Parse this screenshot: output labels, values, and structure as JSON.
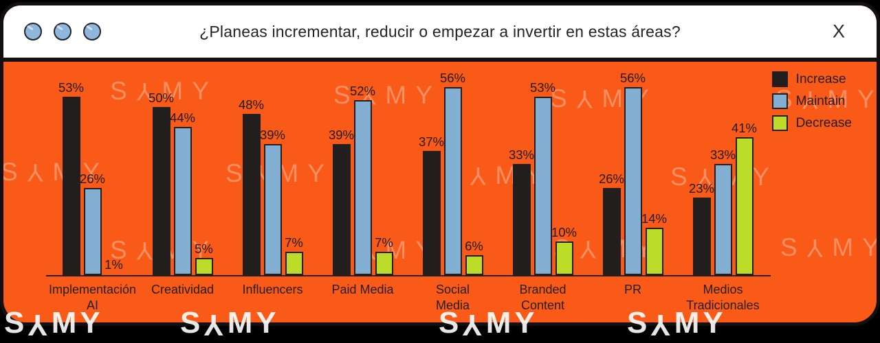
{
  "window": {
    "title": "¿Planeas incrementar, reducir o empezar a invertir en estas áreas?",
    "close_label": "X"
  },
  "colors": {
    "backdrop": "#000000",
    "window_frame": "#14100f",
    "titlebar_bg": "#ffffff",
    "chart_bg": "#F95A17",
    "traffic_light_blue": "#8FB7DC",
    "increase": "#221E1D",
    "maintain": "#82AFD2",
    "decrease": "#BDDC2A",
    "axis": "#241F1E",
    "text": "#241F1E"
  },
  "watermark": {
    "brand": "SAMY",
    "letters": [
      {
        "char": "S",
        "rotated": false
      },
      {
        "char": "Y",
        "rotated": true
      },
      {
        "char": "M",
        "rotated": false
      },
      {
        "char": "Y",
        "rotated": false
      }
    ]
  },
  "legend": {
    "items": [
      {
        "label": "Increase",
        "color": "#221E1D"
      },
      {
        "label": "Maintain",
        "color": "#82AFD2"
      },
      {
        "label": "Decrease",
        "color": "#BDDC2A"
      }
    ]
  },
  "chart_data": {
    "type": "bar",
    "title": "¿Planeas incrementar, reducir o empezar a invertir en estas áreas?",
    "categories": [
      "Implementación AI",
      "Creatividad",
      "Influencers",
      "Paid Media",
      "Social Media",
      "Branded Content",
      "PR",
      "Medios Tradicionales"
    ],
    "category_lines": [
      [
        "Implementación",
        "AI"
      ],
      [
        "Creatividad"
      ],
      [
        "Influencers"
      ],
      [
        "Paid Media"
      ],
      [
        "Social",
        "Media"
      ],
      [
        "Branded",
        "Content"
      ],
      [
        "PR"
      ],
      [
        "Medios",
        "Tradicionales"
      ]
    ],
    "series": [
      {
        "name": "Increase",
        "color": "#221E1D",
        "values": [
          53,
          50,
          48,
          39,
          37,
          33,
          26,
          23
        ]
      },
      {
        "name": "Maintain",
        "color": "#82AFD2",
        "values": [
          26,
          44,
          39,
          52,
          56,
          53,
          56,
          33
        ]
      },
      {
        "name": "Decrease",
        "color": "#BDDC2A",
        "values": [
          1,
          5,
          7,
          7,
          6,
          10,
          14,
          41
        ]
      }
    ],
    "value_suffix": "%",
    "ylim": [
      0,
      60
    ],
    "grid": false,
    "legend_position": "top-right",
    "xlabel": "",
    "ylabel": ""
  }
}
